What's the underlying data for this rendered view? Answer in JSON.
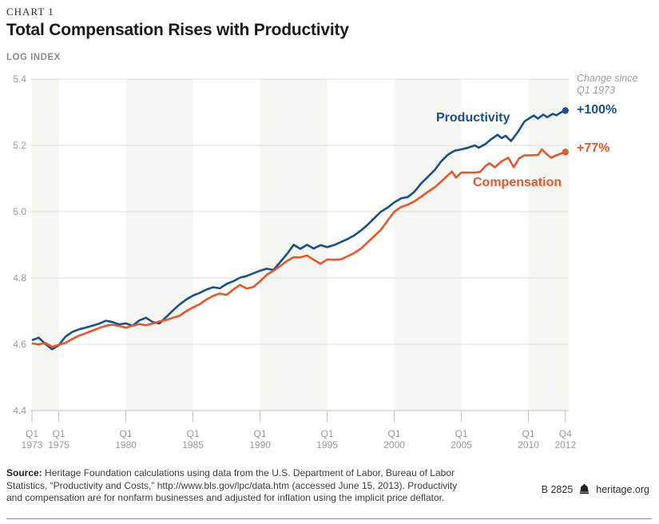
{
  "header": {
    "kicker": "CHART 1",
    "title": "Total Compensation Rises with Productivity",
    "unit_label": "LOG INDEX"
  },
  "annotations": {
    "change_note": "Change since\nQ1 1973",
    "productivity_pct": "+100%",
    "compensation_pct": "+77%",
    "productivity_label": "Productivity",
    "compensation_label": "Compensation"
  },
  "footer": {
    "source_prefix": "Source:",
    "source_text": " Heritage Foundation calculations using data from the U.S. Department of Labor, Bureau of Labor\nStatistics, “Productivity and Costs,” http://www.bls.gov/lpc/data.htm (accessed June 15, 2013). Productivity\nand compensation are for nonfarm businesses and adjusted for inflation using the implicit price deflator.",
    "doc_code": "B 2825",
    "bell_icon": "liberty-bell-icon",
    "site": "heritage.org"
  },
  "colors": {
    "productivity": "#17508f",
    "compensation": "#e8572b",
    "band": "#f5f5f2",
    "gridline": "#dcdcdb",
    "axis": "#c2c2c0",
    "tick_text": "#9a9a9a"
  },
  "chart_data": {
    "type": "line",
    "title": "Total Compensation Rises with Productivity",
    "ylabel": "LOG INDEX",
    "ylim": [
      4.4,
      5.4
    ],
    "yticks": [
      4.4,
      4.6,
      4.8,
      5.0,
      5.2,
      5.4
    ],
    "x_range": [
      1973.0,
      2012.75
    ],
    "xticks": [
      {
        "t": 1973.0,
        "line1": "Q1",
        "line2": "1973"
      },
      {
        "t": 1975.0,
        "line1": "Q1",
        "line2": "1975"
      },
      {
        "t": 1980.0,
        "line1": "Q1",
        "line2": "1980"
      },
      {
        "t": 1985.0,
        "line1": "Q1",
        "line2": "1985"
      },
      {
        "t": 1990.0,
        "line1": "Q1",
        "line2": "1990"
      },
      {
        "t": 1995.0,
        "line1": "Q1",
        "line2": "1995"
      },
      {
        "t": 2000.0,
        "line1": "Q1",
        "line2": "2000"
      },
      {
        "t": 2005.0,
        "line1": "Q1",
        "line2": "2005"
      },
      {
        "t": 2010.0,
        "line1": "Q1",
        "line2": "2010"
      },
      {
        "t": 2012.75,
        "line1": "Q4",
        "line2": "2012"
      }
    ],
    "background_bands_year_ranges": [
      [
        1973.0,
        1975.0
      ],
      [
        1980.0,
        1985.0
      ],
      [
        1990.0,
        1995.0
      ],
      [
        2000.0,
        2005.0
      ],
      [
        2010.0,
        2013.1
      ]
    ],
    "legend_position": "labels-on-lines",
    "grid": "horizontal-only",
    "series": [
      {
        "name": "Productivity",
        "color_key": "productivity",
        "change_since_q1_1973": "+100%",
        "points": [
          [
            1973.0,
            4.612
          ],
          [
            1973.5,
            4.62
          ],
          [
            1974.0,
            4.601
          ],
          [
            1974.5,
            4.585
          ],
          [
            1975.0,
            4.597
          ],
          [
            1975.5,
            4.623
          ],
          [
            1976.0,
            4.637
          ],
          [
            1976.5,
            4.645
          ],
          [
            1977.0,
            4.65
          ],
          [
            1977.5,
            4.656
          ],
          [
            1978.0,
            4.662
          ],
          [
            1978.5,
            4.671
          ],
          [
            1979.0,
            4.667
          ],
          [
            1979.5,
            4.66
          ],
          [
            1980.0,
            4.663
          ],
          [
            1980.5,
            4.656
          ],
          [
            1981.0,
            4.672
          ],
          [
            1981.5,
            4.68
          ],
          [
            1982.0,
            4.667
          ],
          [
            1982.5,
            4.663
          ],
          [
            1983.0,
            4.682
          ],
          [
            1983.5,
            4.702
          ],
          [
            1984.0,
            4.72
          ],
          [
            1984.5,
            4.735
          ],
          [
            1985.0,
            4.747
          ],
          [
            1985.5,
            4.755
          ],
          [
            1986.0,
            4.765
          ],
          [
            1986.5,
            4.772
          ],
          [
            1987.0,
            4.769
          ],
          [
            1987.5,
            4.782
          ],
          [
            1988.0,
            4.79
          ],
          [
            1988.5,
            4.801
          ],
          [
            1989.0,
            4.806
          ],
          [
            1989.5,
            4.814
          ],
          [
            1990.0,
            4.822
          ],
          [
            1990.5,
            4.828
          ],
          [
            1991.0,
            4.824
          ],
          [
            1991.5,
            4.848
          ],
          [
            1992.0,
            4.872
          ],
          [
            1992.5,
            4.9
          ],
          [
            1993.0,
            4.888
          ],
          [
            1993.5,
            4.9
          ],
          [
            1994.0,
            4.889
          ],
          [
            1994.5,
            4.899
          ],
          [
            1995.0,
            4.893
          ],
          [
            1995.5,
            4.899
          ],
          [
            1996.0,
            4.908
          ],
          [
            1996.5,
            4.917
          ],
          [
            1997.0,
            4.928
          ],
          [
            1997.5,
            4.943
          ],
          [
            1998.0,
            4.96
          ],
          [
            1998.5,
            4.98
          ],
          [
            1999.0,
            5.0
          ],
          [
            1999.5,
            5.012
          ],
          [
            2000.0,
            5.028
          ],
          [
            2000.5,
            5.04
          ],
          [
            2001.0,
            5.044
          ],
          [
            2001.5,
            5.06
          ],
          [
            2002.0,
            5.085
          ],
          [
            2002.5,
            5.105
          ],
          [
            2003.0,
            5.125
          ],
          [
            2003.5,
            5.152
          ],
          [
            2004.0,
            5.172
          ],
          [
            2004.5,
            5.184
          ],
          [
            2005.0,
            5.188
          ],
          [
            2005.5,
            5.193
          ],
          [
            2006.0,
            5.2
          ],
          [
            2006.3,
            5.193
          ],
          [
            2006.8,
            5.204
          ],
          [
            2007.2,
            5.218
          ],
          [
            2007.7,
            5.232
          ],
          [
            2008.0,
            5.222
          ],
          [
            2008.3,
            5.229
          ],
          [
            2008.7,
            5.213
          ],
          [
            2009.2,
            5.24
          ],
          [
            2009.7,
            5.272
          ],
          [
            2010.1,
            5.283
          ],
          [
            2010.4,
            5.29
          ],
          [
            2010.7,
            5.281
          ],
          [
            2011.1,
            5.293
          ],
          [
            2011.4,
            5.285
          ],
          [
            2011.8,
            5.295
          ],
          [
            2012.1,
            5.291
          ],
          [
            2012.4,
            5.299
          ],
          [
            2012.75,
            5.305
          ]
        ]
      },
      {
        "name": "Compensation",
        "color_key": "compensation",
        "change_since_q1_1973": "+77%",
        "points": [
          [
            1973.0,
            4.603
          ],
          [
            1973.5,
            4.599
          ],
          [
            1974.0,
            4.604
          ],
          [
            1974.5,
            4.592
          ],
          [
            1975.0,
            4.598
          ],
          [
            1975.5,
            4.604
          ],
          [
            1976.0,
            4.616
          ],
          [
            1976.5,
            4.626
          ],
          [
            1977.0,
            4.633
          ],
          [
            1977.5,
            4.641
          ],
          [
            1978.0,
            4.649
          ],
          [
            1978.5,
            4.656
          ],
          [
            1979.0,
            4.659
          ],
          [
            1979.5,
            4.655
          ],
          [
            1980.0,
            4.65
          ],
          [
            1980.5,
            4.656
          ],
          [
            1981.0,
            4.661
          ],
          [
            1981.5,
            4.657
          ],
          [
            1982.0,
            4.663
          ],
          [
            1982.5,
            4.669
          ],
          [
            1983.0,
            4.673
          ],
          [
            1983.5,
            4.68
          ],
          [
            1984.0,
            4.686
          ],
          [
            1984.5,
            4.7
          ],
          [
            1985.0,
            4.711
          ],
          [
            1985.5,
            4.721
          ],
          [
            1986.0,
            4.735
          ],
          [
            1986.5,
            4.746
          ],
          [
            1987.0,
            4.753
          ],
          [
            1987.5,
            4.749
          ],
          [
            1988.0,
            4.765
          ],
          [
            1988.5,
            4.779
          ],
          [
            1989.0,
            4.768
          ],
          [
            1989.5,
            4.773
          ],
          [
            1990.0,
            4.79
          ],
          [
            1990.5,
            4.81
          ],
          [
            1991.0,
            4.822
          ],
          [
            1991.5,
            4.836
          ],
          [
            1992.0,
            4.851
          ],
          [
            1992.5,
            4.863
          ],
          [
            1993.0,
            4.862
          ],
          [
            1993.5,
            4.868
          ],
          [
            1994.0,
            4.855
          ],
          [
            1994.5,
            4.843
          ],
          [
            1995.0,
            4.856
          ],
          [
            1995.5,
            4.855
          ],
          [
            1996.0,
            4.856
          ],
          [
            1996.5,
            4.865
          ],
          [
            1997.0,
            4.875
          ],
          [
            1997.5,
            4.888
          ],
          [
            1998.0,
            4.907
          ],
          [
            1998.5,
            4.926
          ],
          [
            1999.0,
            4.945
          ],
          [
            1999.5,
            4.973
          ],
          [
            2000.0,
            5.0
          ],
          [
            2000.5,
            5.014
          ],
          [
            2001.0,
            5.021
          ],
          [
            2001.5,
            5.031
          ],
          [
            2002.0,
            5.045
          ],
          [
            2002.5,
            5.06
          ],
          [
            2003.0,
            5.073
          ],
          [
            2003.5,
            5.091
          ],
          [
            2004.0,
            5.11
          ],
          [
            2004.3,
            5.121
          ],
          [
            2004.6,
            5.103
          ],
          [
            2005.0,
            5.118
          ],
          [
            2005.5,
            5.118
          ],
          [
            2006.0,
            5.118
          ],
          [
            2006.4,
            5.12
          ],
          [
            2006.8,
            5.138
          ],
          [
            2007.1,
            5.146
          ],
          [
            2007.5,
            5.134
          ],
          [
            2008.0,
            5.152
          ],
          [
            2008.5,
            5.163
          ],
          [
            2008.9,
            5.134
          ],
          [
            2009.3,
            5.161
          ],
          [
            2009.7,
            5.17
          ],
          [
            2010.2,
            5.17
          ],
          [
            2010.7,
            5.171
          ],
          [
            2011.0,
            5.188
          ],
          [
            2011.4,
            5.172
          ],
          [
            2011.7,
            5.163
          ],
          [
            2012.0,
            5.169
          ],
          [
            2012.4,
            5.175
          ],
          [
            2012.75,
            5.18
          ]
        ]
      }
    ]
  }
}
